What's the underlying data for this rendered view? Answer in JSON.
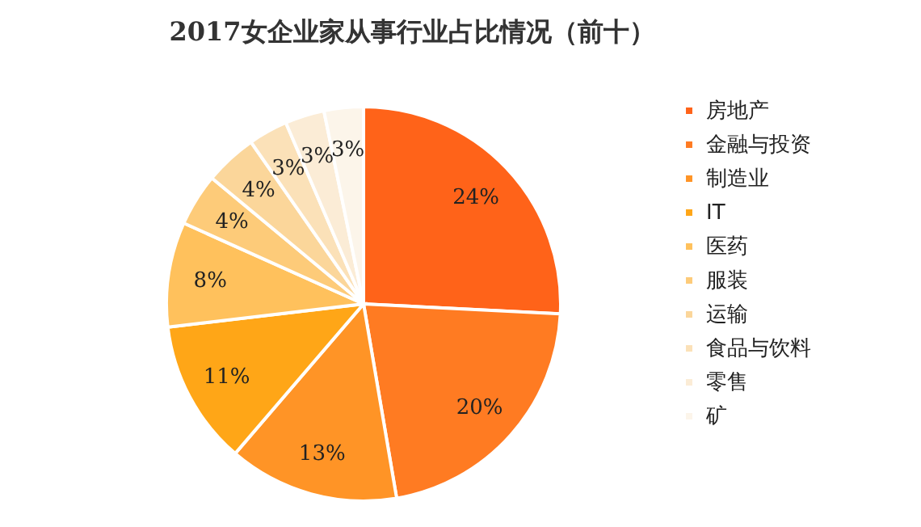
{
  "chart_data": {
    "type": "pie",
    "title": "2017女企业家从事行业占比情况（前十）",
    "categories": [
      "房地产",
      "金融与投资",
      "制造业",
      "IT",
      "医药",
      "服装",
      "运输",
      "食品与饮料",
      "零售",
      "矿"
    ],
    "values": [
      24,
      20,
      13,
      11,
      8,
      4,
      4,
      3,
      3,
      3
    ],
    "value_labels": [
      "24%",
      "20%",
      "13%",
      "11%",
      "8%",
      "4%",
      "4%",
      "3%",
      "3%",
      "3%"
    ],
    "colors": [
      "#ff6319",
      "#ff7b22",
      "#ff9426",
      "#ffa617",
      "#ffc15c",
      "#fdcb79",
      "#fbd69a",
      "#fbe1b8",
      "#fbecd6",
      "#fcf5ea"
    ],
    "legend": "right"
  }
}
